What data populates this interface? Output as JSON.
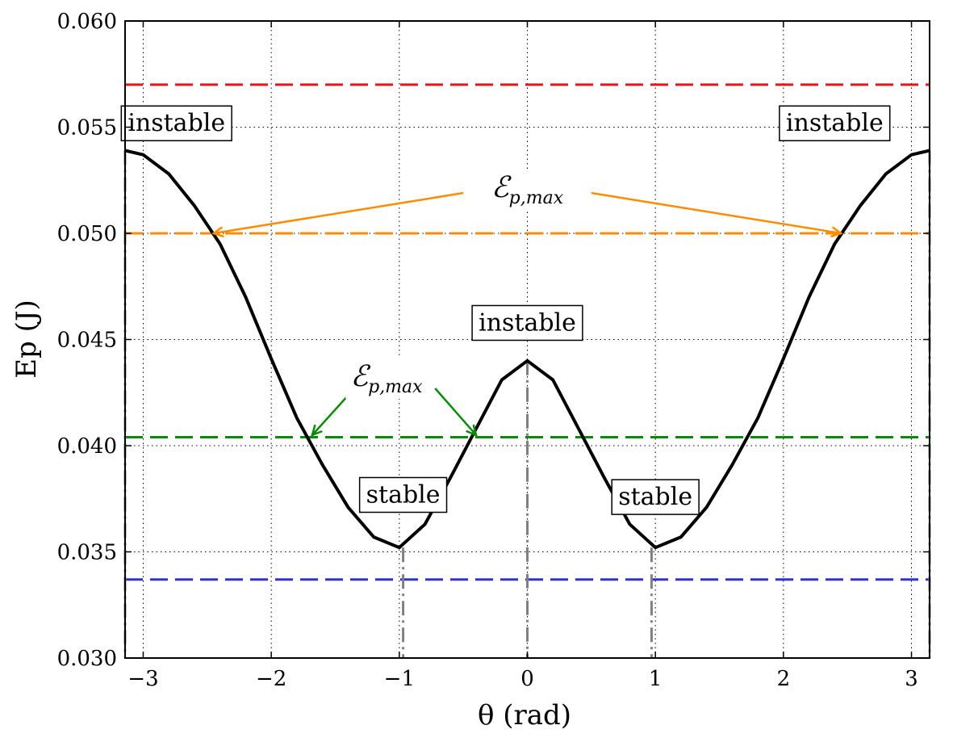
{
  "chart_data": {
    "type": "line",
    "xlabel": "θ (rad)",
    "ylabel": "Ep (J)",
    "xlim": [
      -3.1416,
      3.1416
    ],
    "ylim": [
      0.03,
      0.06
    ],
    "x_ticks": [
      -3,
      -2,
      -1,
      0,
      1,
      2,
      3
    ],
    "x_tick_labels": [
      "−3",
      "−2",
      "−1",
      "0",
      "1",
      "2",
      "3"
    ],
    "y_ticks": [
      0.03,
      0.035,
      0.04,
      0.045,
      0.05,
      0.055,
      0.06
    ],
    "y_tick_labels": [
      "0.030",
      "0.035",
      "0.040",
      "0.045",
      "0.050",
      "0.055",
      "0.060"
    ],
    "grid": true,
    "series": [
      {
        "color": "#000000",
        "points": [
          [
            -3.1416,
            0.0539
          ],
          [
            -3.0,
            0.0537
          ],
          [
            -2.8,
            0.0528
          ],
          [
            -2.6,
            0.0513
          ],
          [
            -2.4,
            0.0495
          ],
          [
            -2.2,
            0.047
          ],
          [
            -2.0,
            0.0441
          ],
          [
            -1.8,
            0.0413
          ],
          [
            -1.6,
            0.0391
          ],
          [
            -1.4,
            0.0371
          ],
          [
            -1.2,
            0.0357
          ],
          [
            -1.0,
            0.0352
          ],
          [
            -0.8,
            0.0363
          ],
          [
            -0.6,
            0.0385
          ],
          [
            -0.4,
            0.0408
          ],
          [
            -0.2,
            0.0431
          ],
          [
            0.0,
            0.044
          ],
          [
            0.2,
            0.0431
          ],
          [
            0.4,
            0.0408
          ],
          [
            0.6,
            0.0385
          ],
          [
            0.8,
            0.0363
          ],
          [
            1.0,
            0.0352
          ],
          [
            1.2,
            0.0357
          ],
          [
            1.4,
            0.0371
          ],
          [
            1.6,
            0.0391
          ],
          [
            1.8,
            0.0413
          ],
          [
            2.0,
            0.0441
          ],
          [
            2.2,
            0.047
          ],
          [
            2.4,
            0.0495
          ],
          [
            2.6,
            0.0513
          ],
          [
            2.8,
            0.0528
          ],
          [
            3.0,
            0.0537
          ],
          [
            3.1416,
            0.0539
          ]
        ]
      }
    ],
    "reference_lines": [
      {
        "y": 0.057,
        "color": "#e8141b"
      },
      {
        "y": 0.05,
        "color": "#ff8c00"
      },
      {
        "y": 0.0404,
        "color": "#0a8a0a"
      },
      {
        "y": 0.0337,
        "color": "#3333cc"
      }
    ],
    "extremum_markers": [
      {
        "x": -3.1416,
        "y": 0.0539
      },
      {
        "x": -0.97,
        "y": 0.0352
      },
      {
        "x": 0.0,
        "y": 0.044
      },
      {
        "x": 0.97,
        "y": 0.0352
      },
      {
        "x": 3.1416,
        "y": 0.0539
      }
    ],
    "annotations": [
      {
        "text": "instable",
        "x": -2.74,
        "y": 0.0552
      },
      {
        "text": "instable",
        "x": 2.4,
        "y": 0.0552
      },
      {
        "text": "instable",
        "x": 0.0,
        "y": 0.0458
      },
      {
        "text": "stable",
        "x": -0.97,
        "y": 0.0377
      },
      {
        "text": "stable",
        "x": 1.0,
        "y": 0.0376
      }
    ],
    "ep_max_labels": [
      {
        "main": "ℰ",
        "sub": "p,max",
        "x": 0.0,
        "y": 0.0521,
        "color": "#ff8c00",
        "arrows": [
          {
            "from": [
              -0.5,
              0.0519
            ],
            "to": [
              -2.45,
              0.05
            ]
          },
          {
            "from": [
              0.5,
              0.0519
            ],
            "to": [
              2.45,
              0.05
            ]
          }
        ]
      },
      {
        "main": "ℰ",
        "sub": "p,max",
        "x": -1.1,
        "y": 0.0432,
        "color": "#0a8a0a",
        "arrows": [
          {
            "from": [
              -1.35,
              0.0427
            ],
            "to": [
              -1.68,
              0.0405
            ]
          },
          {
            "from": [
              -0.72,
              0.0427
            ],
            "to": [
              -0.4,
              0.0405
            ]
          }
        ]
      }
    ]
  }
}
